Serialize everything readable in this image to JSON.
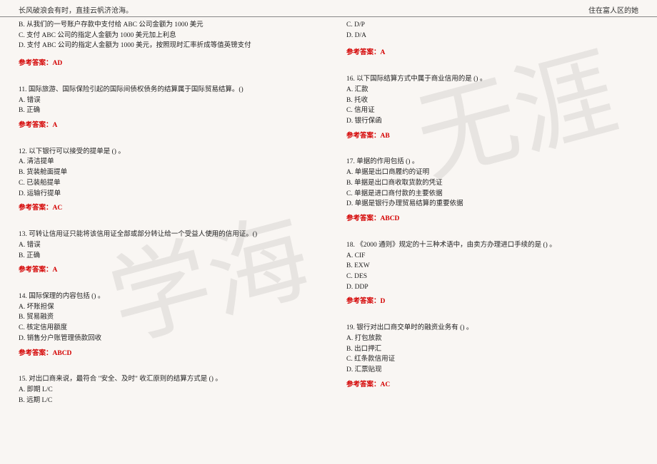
{
  "header": {
    "left": "长风破浪会有时，直挂云帆济沧海。",
    "right": "住在富人区的她"
  },
  "left": {
    "b0": {
      "l1": "B. 从我们的一号账户存款中支付给 ABC 公司金额为 1000 美元",
      "l2": "C. 支付 ABC 公司的指定人金额为 1000 美元加上利息",
      "l3": "D. 支付 ABC 公司的指定人金额为 1000 美元，按照现时汇率折成等值英镑支付",
      "ans": "参考答案：AD"
    },
    "b1": {
      "l1": "11. 国际旅游、国际保险引起的国际间债权债务的结算属于国际贸易结算。()",
      "l2": "A. 错误",
      "l3": "B. 正确",
      "ans": "参考答案：A"
    },
    "b2": {
      "l1": "12. 以下银行可以接受的提单是 () 。",
      "l2": "A. 清洁提单",
      "l3": "B. 货装舱面提单",
      "l4": "C. 已装船提单",
      "l5": "D. 运输行提单",
      "ans": "参考答案：AC"
    },
    "b3": {
      "l1": "13. 可转让信用证只能将该信用证全部或部分转让给一个受益人使用的信用证。()",
      "l2": "A. 错误",
      "l3": "B. 正确",
      "ans": "参考答案：A"
    },
    "b4": {
      "l1": "14. 国际保理的内容包括 () 。",
      "l2": "A. 坏账担保",
      "l3": "B. 贸易融资",
      "l4": "C. 核定信用额度",
      "l5": "D. 销售分户账管理债款回收",
      "ans": "参考答案：ABCD"
    },
    "b5": {
      "l1": "15. 对出口商来说，最符合 \"安全、及时\" 收汇原则的结算方式是 () 。",
      "l2": "A. 即期 L/C",
      "l3": "B. 远期 L/C"
    }
  },
  "right": {
    "b0": {
      "l1": "C. D/P",
      "l2": "D. D/A",
      "ans": "参考答案：A"
    },
    "b1": {
      "l1": "16. 以下国际结算方式中属于商业信用的是 () 。",
      "l2": "A. 汇款",
      "l3": "B. 托收",
      "l4": "C. 信用证",
      "l5": "D. 银行保函",
      "ans": "参考答案：AB"
    },
    "b2": {
      "l1": "17. 单据的作用包括 () 。",
      "l2": "A. 单据是出口商履约的证明",
      "l3": "B. 单据是出口商收取货款的凭证",
      "l4": "C. 单据是进口商付款的主要依据",
      "l5": "D. 单据是银行办理贸易结算的重要依据",
      "ans": "参考答案：ABCD"
    },
    "b3": {
      "l1": "18. 《2000 通则》规定的十三种术语中，由卖方办理进口手续的是 () 。",
      "l2": "A. CIF",
      "l3": "B. EXW",
      "l4": "C. DES",
      "l5": "D. DDP",
      "ans": "参考答案：D"
    },
    "b4": {
      "l1": "19. 银行对出口商交单时的融资业务有 () 。",
      "l2": "A. 打包放款",
      "l3": "B. 出口押汇",
      "l4": "C. 红条款信用证",
      "l5": "D. 汇票贴现",
      "ans": "参考答案：AC"
    }
  }
}
